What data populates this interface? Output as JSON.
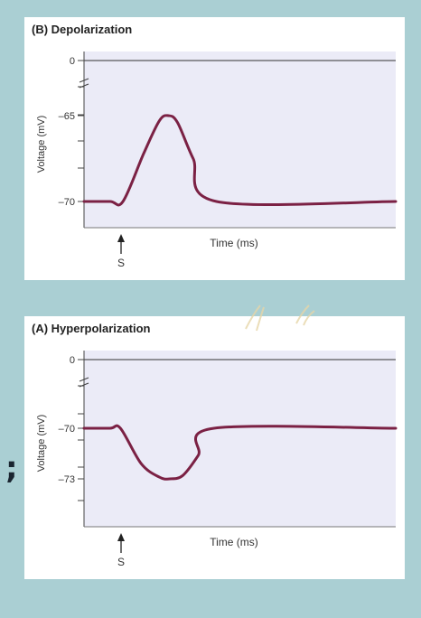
{
  "chart_data": [
    {
      "type": "line",
      "title": "(B) Depolarization",
      "xlabel": "Time (ms)",
      "ylabel": "Voltage (mV)",
      "y_ticks": [
        {
          "value": 0,
          "label": "0"
        },
        {
          "value": -65,
          "label": "–65"
        },
        {
          "value": -70,
          "label": "–70"
        }
      ],
      "y_axis_break": true,
      "baseline": -70,
      "peak": -65,
      "stimulus_label": "S",
      "series": [
        {
          "values": [
            [
              0,
              -70
            ],
            [
              1,
              -70
            ],
            [
              1.5,
              -70
            ],
            [
              2.3,
              -67.2
            ],
            [
              2.9,
              -65.3
            ],
            [
              3.25,
              -65
            ],
            [
              3.6,
              -65.4
            ],
            [
              4.2,
              -67.5
            ],
            [
              5.1,
              -70
            ],
            [
              12,
              -70
            ]
          ]
        }
      ],
      "colors": {
        "line": "#7b2144",
        "plot_bg": "#ebebf7",
        "zero_line": "#333333"
      }
    },
    {
      "type": "line",
      "title": "(A) Hyperpolarization",
      "xlabel": "Time (ms)",
      "ylabel": "Voltage (mV)",
      "y_ticks": [
        {
          "value": 0,
          "label": "0"
        },
        {
          "value": -70,
          "label": "–70"
        },
        {
          "value": -73,
          "label": "–73"
        }
      ],
      "y_axis_break": true,
      "baseline": -70,
      "trough": -73,
      "stimulus_label": "S",
      "series": [
        {
          "values": [
            [
              0,
              -70
            ],
            [
              1,
              -70
            ],
            [
              1.4,
              -70
            ],
            [
              2.2,
              -72.1
            ],
            [
              2.9,
              -72.9
            ],
            [
              3.3,
              -73
            ],
            [
              3.8,
              -72.8
            ],
            [
              4.4,
              -71.6
            ],
            [
              5.0,
              -70
            ],
            [
              12,
              -70
            ]
          ]
        }
      ],
      "colors": {
        "line": "#7b2144",
        "plot_bg": "#ebebf7",
        "zero_line": "#333333"
      }
    }
  ],
  "decor": {
    "separator": ";"
  }
}
